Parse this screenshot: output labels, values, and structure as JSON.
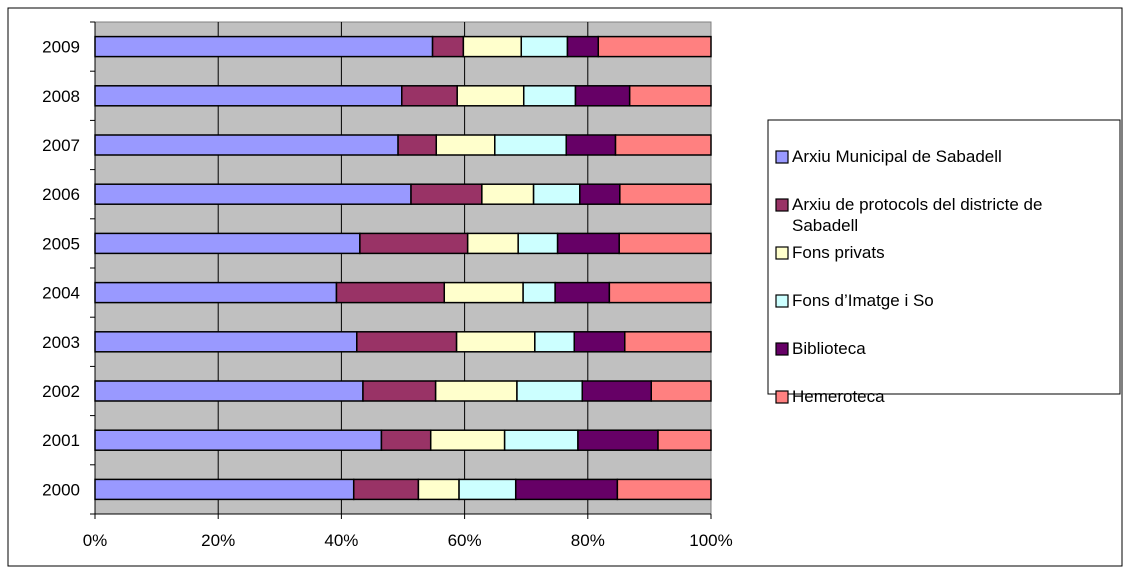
{
  "chart_data": {
    "type": "bar",
    "orientation": "horizontal",
    "stacking": "percent",
    "categories": [
      "2000",
      "2001",
      "2002",
      "2003",
      "2004",
      "2005",
      "2006",
      "2007",
      "2008",
      "2009"
    ],
    "series": [
      {
        "name": "Arxiu Municipal de Sabadell",
        "color": "#9999FF",
        "values": [
          42,
          46.5,
          43.5,
          42.5,
          39.2,
          43,
          51.3,
          49.2,
          49.8,
          54.8
        ]
      },
      {
        "name": "Arxiu de protocols del districte de Sabadell",
        "color": "#993366",
        "values": [
          10.5,
          8,
          11.8,
          16.2,
          17.5,
          17.5,
          11.5,
          6.2,
          9,
          5
        ]
      },
      {
        "name": "Fons privats",
        "color": "#FFFFCC",
        "values": [
          6.6,
          12,
          13.2,
          12.7,
          12.8,
          8.2,
          8.4,
          9.5,
          10.8,
          9.4
        ]
      },
      {
        "name": "Fons d’Imatge i So",
        "color": "#CCFFFF",
        "values": [
          9.2,
          11.9,
          10.6,
          6.4,
          5.2,
          6.4,
          7.5,
          11.6,
          8.4,
          7.5
        ]
      },
      {
        "name": "Biblioteca",
        "color": "#660066",
        "values": [
          16.5,
          13,
          11.2,
          8.2,
          8.8,
          10,
          6.5,
          8,
          8.8,
          5
        ]
      },
      {
        "name": "Hemeroteca",
        "color": "#FF8080",
        "values": [
          15.2,
          8.6,
          9.7,
          14,
          16.5,
          14.9,
          14.8,
          15.5,
          13.2,
          18.3
        ]
      }
    ],
    "x_ticks": [
      "0%",
      "20%",
      "40%",
      "60%",
      "80%",
      "100%"
    ],
    "xlim": [
      0,
      100
    ],
    "grid": true,
    "plot_background": "#C0C0C0",
    "legend_position": "right"
  }
}
